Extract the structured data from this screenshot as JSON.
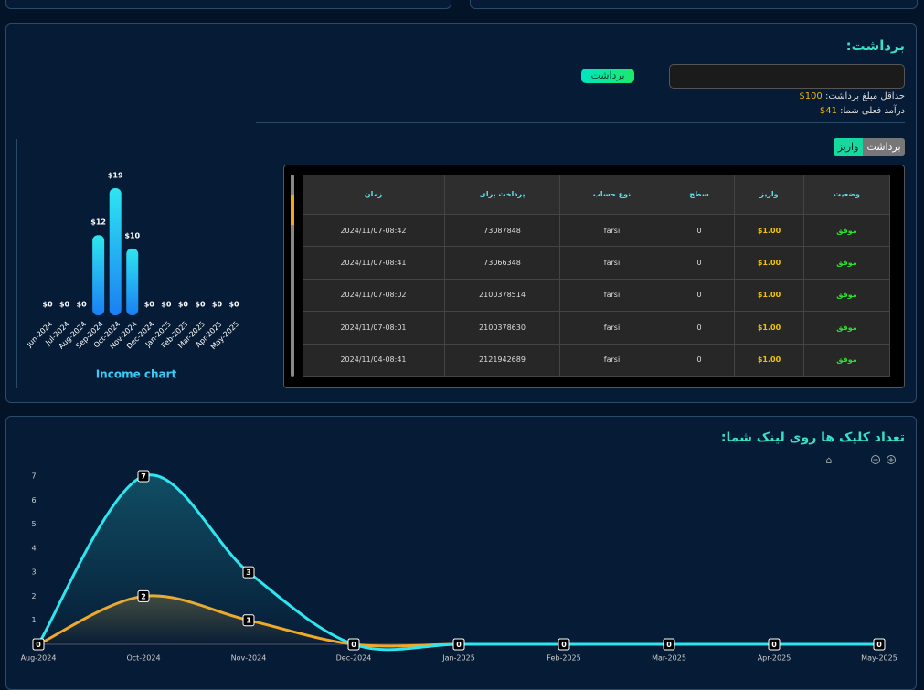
{
  "withdraw": {
    "title": "برداشت:",
    "button": "برداشت",
    "min_label": "حداقل مبلغ برداشت:",
    "min_value": "100$",
    "income_label": "درآمد فعلی شما:",
    "income_value": "41$",
    "tabs": [
      "برداشت",
      "واریز"
    ]
  },
  "table": {
    "headers": [
      "وضعیت",
      "واریز",
      "سطح",
      "نوع حساب",
      "پرداخت برای",
      "زمان"
    ],
    "rows": [
      [
        "موفق",
        "$1.00",
        "0",
        "farsi",
        "73087848",
        "2024/11/07-08:42"
      ],
      [
        "موفق",
        "$1.00",
        "0",
        "farsi",
        "73066348",
        "2024/11/07-08:41"
      ],
      [
        "موفق",
        "$1.00",
        "0",
        "farsi",
        "2100378514",
        "2024/11/07-08:02"
      ],
      [
        "موفق",
        "$1.00",
        "0",
        "farsi",
        "2100378630",
        "2024/11/07-08:01"
      ],
      [
        "موفق",
        "$1.00",
        "0",
        "farsi",
        "2121942689",
        "2024/11/04-08:41"
      ]
    ]
  },
  "chart_data": [
    {
      "type": "bar",
      "title": "Income chart",
      "categories": [
        "Jun-2024",
        "Jul-2024",
        "Aug-2024",
        "Sep-2024",
        "Oct-2024",
        "Nov-2024",
        "Dec-2024",
        "Jan-2025",
        "Feb-2025",
        "Mar-2025",
        "Apr-2025",
        "May-2025"
      ],
      "values": [
        0,
        0,
        0,
        12,
        19,
        10,
        0,
        0,
        0,
        0,
        0,
        0
      ],
      "value_labels": [
        "$0",
        "$0",
        "$0",
        "$12",
        "$19",
        "$10",
        "$0",
        "$0",
        "$0",
        "$0",
        "$0",
        "$0"
      ],
      "color": "#1fb6f5"
    },
    {
      "type": "line",
      "title": "تعداد کلیک ها روی لینک شما:",
      "categories": [
        "Aug-2024",
        "Oct-2024",
        "Nov-2024",
        "Dec-2024",
        "Jan-2025",
        "Feb-2025",
        "Mar-2025",
        "Apr-2025",
        "May-2025"
      ],
      "series": [
        {
          "color": "#f5a623",
          "values": [
            0,
            2,
            1,
            0,
            0,
            0,
            0,
            0,
            0
          ]
        },
        {
          "color": "#2ee6f0",
          "values": [
            0,
            7,
            3,
            0,
            0,
            0,
            0,
            0,
            0
          ]
        }
      ],
      "ylim": [
        0,
        7
      ],
      "yticks": [
        1,
        2,
        3,
        4,
        5,
        6,
        7
      ]
    }
  ]
}
